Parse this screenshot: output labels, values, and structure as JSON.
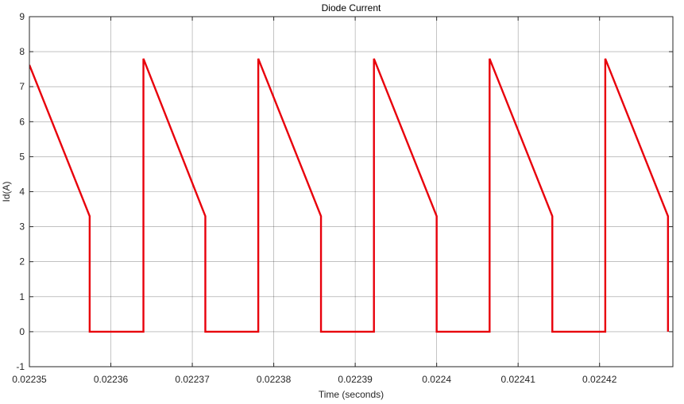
{
  "chart_data": {
    "type": "line",
    "title": "Diode Current",
    "xlabel": "Time (seconds)",
    "ylabel": "Id(A)",
    "xlim": [
      0.02235,
      0.022429
    ],
    "ylim": [
      -1,
      9
    ],
    "grid": true,
    "x_ticks": [
      0.02235,
      0.02236,
      0.02237,
      0.02238,
      0.02239,
      0.0224,
      0.02241,
      0.02242
    ],
    "x_tick_labels": [
      "0.02235",
      "0.02236",
      "0.02237",
      "0.02238",
      "0.02239",
      "0.0224",
      "0.02241",
      "0.02242"
    ],
    "y_ticks": [
      -1,
      0,
      1,
      2,
      3,
      4,
      5,
      6,
      7,
      8,
      9
    ],
    "y_tick_labels": [
      "-1",
      "0",
      "1",
      "2",
      "3",
      "4",
      "5",
      "6",
      "7",
      "8",
      "9"
    ],
    "series": [
      {
        "color": "#e8000b",
        "x": [
          0.02235,
          0.0223574,
          0.0223574,
          0.0223574,
          0.022364,
          0.022364,
          0.0223716,
          0.0223716,
          0.0223716,
          0.0223781,
          0.0223781,
          0.0223858,
          0.0223858,
          0.0223858,
          0.0223923,
          0.0223923,
          0.0224,
          0.0224,
          0.0224,
          0.0224065,
          0.0224065,
          0.0224142,
          0.0224142,
          0.0224142,
          0.0224207,
          0.0224207,
          0.0224284,
          0.0224284,
          0.0224284
        ],
        "y": [
          7.62,
          3.3,
          3.3,
          0,
          0,
          7.8,
          3.3,
          3.3,
          0,
          0,
          7.8,
          3.3,
          3.3,
          0,
          0,
          7.8,
          3.3,
          3.3,
          0,
          0,
          7.8,
          3.3,
          3.3,
          0,
          0,
          7.8,
          3.3,
          3.3,
          0
        ]
      }
    ]
  },
  "colors": {
    "grid": "#262626",
    "axes": "#262626",
    "line": "#e8000b"
  }
}
